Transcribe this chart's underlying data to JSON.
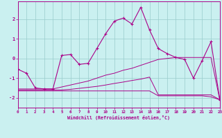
{
  "xlabel": "Windchill (Refroidissement éolien,°C)",
  "bg_color": "#caf0f0",
  "grid_color": "#99cccc",
  "line_color": "#aa0088",
  "x_min": 0,
  "x_max": 23,
  "y_min": -2.5,
  "y_max": 2.9,
  "yticks": [
    -2,
    -1,
    0,
    1,
    2
  ],
  "xticks": [
    0,
    1,
    2,
    3,
    4,
    5,
    6,
    7,
    8,
    9,
    10,
    11,
    12,
    13,
    14,
    15,
    16,
    17,
    18,
    19,
    20,
    21,
    22,
    23
  ],
  "line1_x": [
    0,
    1,
    2,
    3,
    4,
    5,
    6,
    7,
    8,
    9,
    10,
    11,
    12,
    13,
    14,
    15,
    16,
    17,
    18,
    19,
    20,
    21,
    22,
    23
  ],
  "line1_y": [
    -0.55,
    -0.75,
    -1.5,
    -1.55,
    -1.55,
    0.15,
    0.2,
    -0.3,
    -0.25,
    0.5,
    1.25,
    1.9,
    2.05,
    1.75,
    2.6,
    1.45,
    0.5,
    0.25,
    0.05,
    -0.05,
    -1.0,
    -0.1,
    0.85,
    -2.1
  ],
  "line2_x": [
    0,
    1,
    2,
    3,
    4,
    5,
    6,
    7,
    8,
    9,
    10,
    11,
    12,
    13,
    14,
    15,
    16,
    17,
    18,
    19,
    20,
    21,
    22,
    23
  ],
  "line2_y": [
    -1.55,
    -1.55,
    -1.55,
    -1.55,
    -1.55,
    -1.45,
    -1.35,
    -1.25,
    -1.15,
    -1.0,
    -0.85,
    -0.75,
    -0.6,
    -0.5,
    -0.35,
    -0.2,
    -0.05,
    0.0,
    0.05,
    0.05,
    0.05,
    0.05,
    0.05,
    -2.1
  ],
  "line3_x": [
    0,
    1,
    2,
    3,
    4,
    5,
    6,
    7,
    8,
    9,
    10,
    11,
    12,
    13,
    14,
    15,
    16,
    17,
    18,
    19,
    20,
    21,
    22,
    23
  ],
  "line3_y": [
    -1.6,
    -1.6,
    -1.6,
    -1.6,
    -1.6,
    -1.6,
    -1.57,
    -1.52,
    -1.47,
    -1.42,
    -1.35,
    -1.27,
    -1.2,
    -1.12,
    -1.05,
    -0.95,
    -1.85,
    -1.85,
    -1.85,
    -1.85,
    -1.85,
    -1.85,
    -1.85,
    -2.1
  ],
  "line4_x": [
    0,
    1,
    2,
    3,
    4,
    5,
    6,
    7,
    8,
    9,
    10,
    11,
    12,
    13,
    14,
    15,
    16,
    17,
    18,
    19,
    20,
    21,
    22,
    23
  ],
  "line4_y": [
    -1.65,
    -1.65,
    -1.65,
    -1.65,
    -1.65,
    -1.65,
    -1.65,
    -1.65,
    -1.65,
    -1.65,
    -1.65,
    -1.65,
    -1.65,
    -1.65,
    -1.65,
    -1.65,
    -1.9,
    -1.9,
    -1.9,
    -1.9,
    -1.9,
    -1.9,
    -1.95,
    -2.1
  ]
}
